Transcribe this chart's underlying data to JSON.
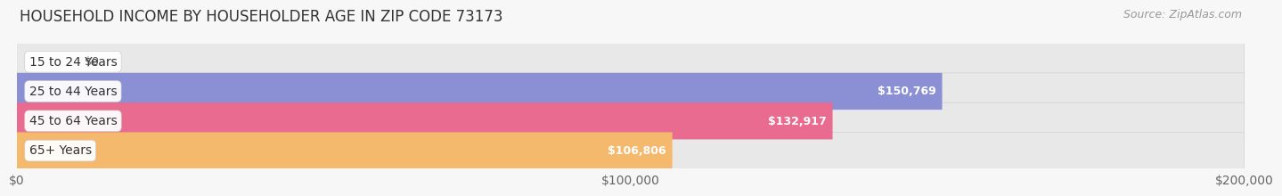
{
  "title": "HOUSEHOLD INCOME BY HOUSEHOLDER AGE IN ZIP CODE 73173",
  "source": "Source: ZipAtlas.com",
  "categories": [
    "15 to 24 Years",
    "25 to 44 Years",
    "45 to 64 Years",
    "65+ Years"
  ],
  "values": [
    0,
    150769,
    132917,
    106806
  ],
  "value_labels": [
    "$0",
    "$150,769",
    "$132,917",
    "$106,806"
  ],
  "bar_colors": [
    "#72cece",
    "#8b8fd4",
    "#e96b90",
    "#f5b96e"
  ],
  "bar_bg_color": "#e8e8e8",
  "bar_border_color": "#d0d0d0",
  "xlim": [
    0,
    200000
  ],
  "xtick_values": [
    0,
    100000,
    200000
  ],
  "xtick_labels": [
    "$0",
    "$100,000",
    "$200,000"
  ],
  "title_fontsize": 12,
  "source_fontsize": 9,
  "label_fontsize": 10,
  "value_fontsize": 9,
  "bar_height": 0.62,
  "background_color": "#f7f7f7",
  "value_label_inside_color": "#ffffff",
  "value_label_outside_color": "#555555",
  "cat_label_color": "#333333"
}
